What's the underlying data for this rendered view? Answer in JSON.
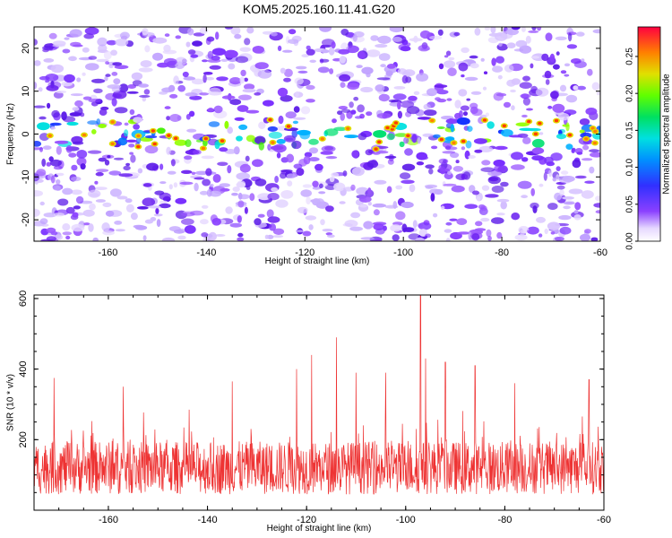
{
  "title": "KOM5.2025.160.11.41.G20",
  "chart_data": [
    {
      "type": "heatmap",
      "title": "KOM5.2025.160.11.41.G20",
      "xlabel": "Height of straight line (km)",
      "ylabel": "Frequency (Hz)",
      "xlim": [
        -175,
        -60
      ],
      "ylim": [
        -25,
        25
      ],
      "xticks": [
        -160,
        -140,
        -120,
        -100,
        -80,
        -60
      ],
      "yticks": [
        -20,
        -10,
        0,
        10,
        20
      ],
      "band_center_hz": 0,
      "band_halfwidth_hz": 5,
      "colorbar": {
        "label": "Normalized spectral amplitude",
        "range": [
          0,
          0.29
        ],
        "ticks": [
          "0.00",
          "0.05",
          "0.10",
          "0.15",
          "0.20",
          "0.25"
        ]
      },
      "grid": false
    },
    {
      "type": "line",
      "xlabel": "Height of straight line (km)",
      "ylabel": "SNR (10 * v/v)",
      "xlim": [
        -175,
        -60
      ],
      "ylim": [
        0,
        610
      ],
      "xticks": [
        -160,
        -140,
        -120,
        -100,
        -80,
        -60
      ],
      "yticks": [
        200,
        400,
        600
      ],
      "color": "#ee3333",
      "baseline_mean": 120,
      "peaks": [
        {
          "x": -171,
          "y": 375
        },
        {
          "x": -157,
          "y": 350
        },
        {
          "x": -135,
          "y": 365
        },
        {
          "x": -122,
          "y": 400
        },
        {
          "x": -119,
          "y": 440
        },
        {
          "x": -114,
          "y": 490
        },
        {
          "x": -110,
          "y": 390
        },
        {
          "x": -104,
          "y": 390
        },
        {
          "x": -97,
          "y": 610
        },
        {
          "x": -96,
          "y": 430
        },
        {
          "x": -92,
          "y": 420
        },
        {
          "x": -86,
          "y": 410
        },
        {
          "x": -78,
          "y": 360
        },
        {
          "x": -63,
          "y": 370
        }
      ],
      "grid": false
    }
  ]
}
